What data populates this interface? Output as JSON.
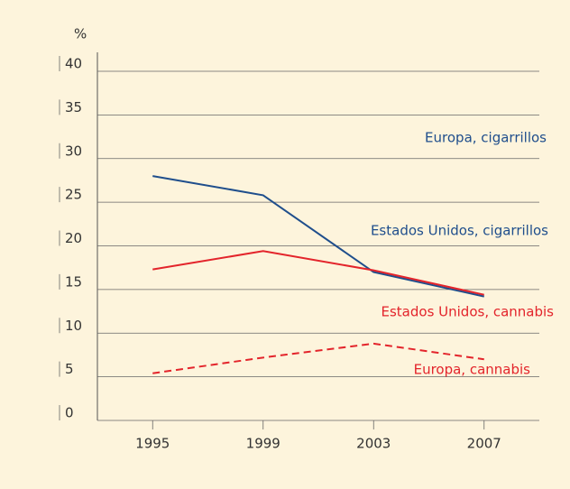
{
  "chart_data": {
    "type": "line",
    "y_label": "%",
    "x": [
      1995,
      1999,
      2003,
      2007
    ],
    "xlim": [
      1993,
      2009
    ],
    "xticks": [
      1995,
      1999,
      2003,
      2007
    ],
    "ylim": [
      0,
      40
    ],
    "yticks": [
      0,
      5,
      10,
      15,
      20,
      25,
      30,
      35,
      40
    ],
    "grid": true,
    "annotations": [
      "Europa, cigarrillos"
    ],
    "series": [
      {
        "name": "Estados Unidos, cigarrillos",
        "color": "#1f4e8c",
        "dash": false,
        "values": [
          28.0,
          25.8,
          17.0,
          14.2
        ]
      },
      {
        "name": "Estados Unidos, cannabis",
        "color": "#e3242b",
        "dash": false,
        "values": [
          17.3,
          19.4,
          17.2,
          14.4
        ]
      },
      {
        "name": "Europa, cannabis",
        "color": "#e3242b",
        "dash": true,
        "values": [
          5.4,
          7.2,
          8.8,
          7.0
        ]
      }
    ]
  }
}
